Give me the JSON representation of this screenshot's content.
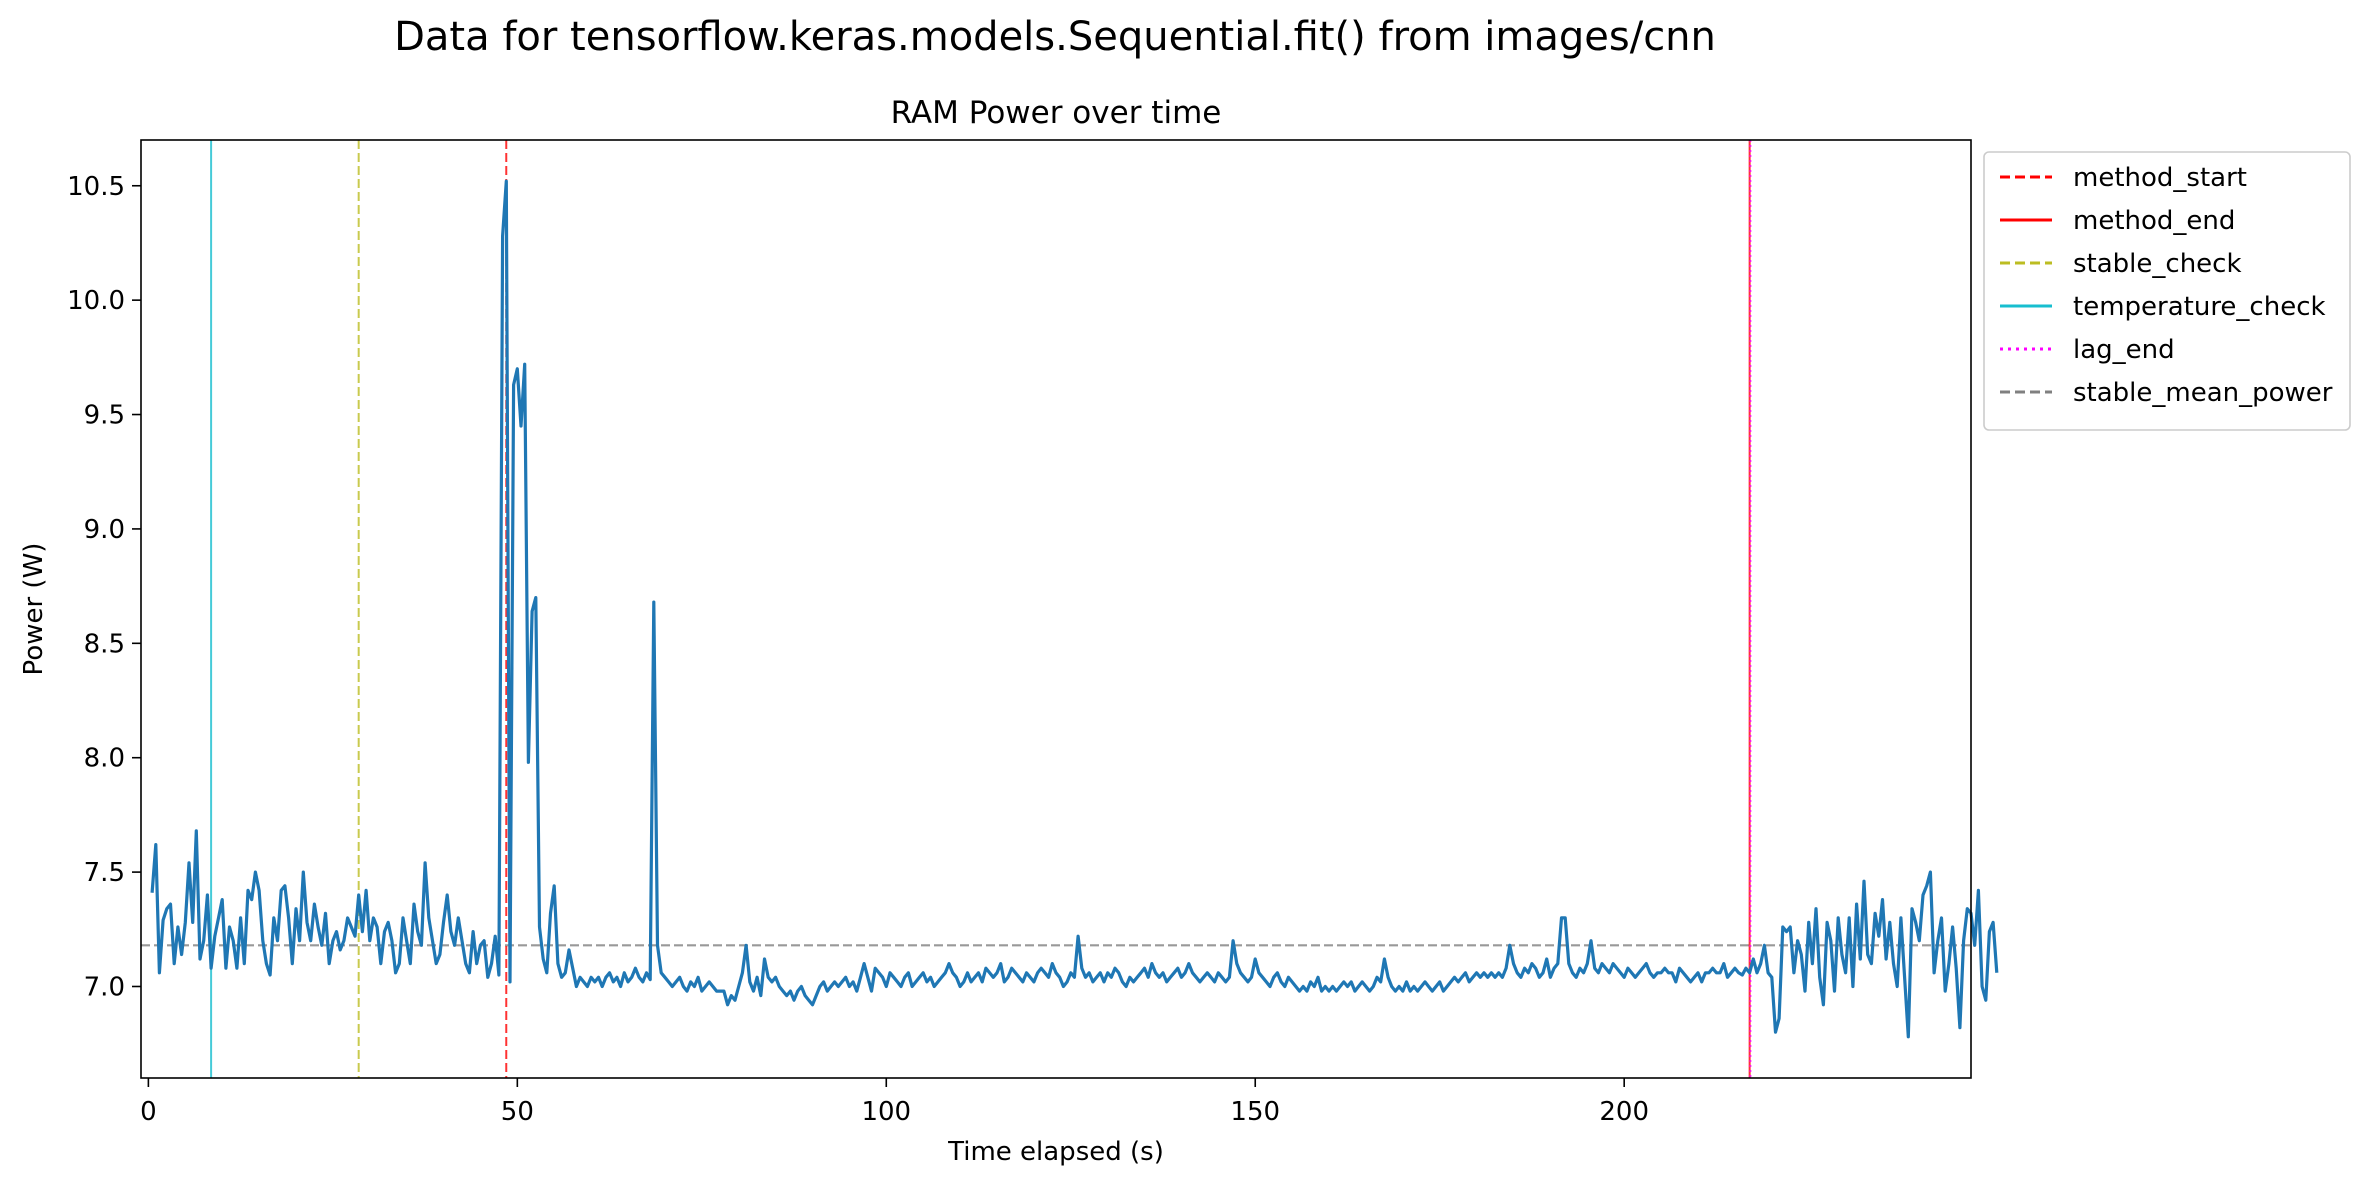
{
  "chart_data": {
    "type": "line",
    "suptitle": "Data for tensorflow.keras.models.Sequential.fit() from images/cnn",
    "title": "RAM Power over time",
    "xlabel": "Time elapsed (s)",
    "ylabel": "Power (W)",
    "xlim": [
      -1,
      247
    ],
    "ylim": [
      6.6,
      10.7
    ],
    "xticks": [
      0,
      50,
      100,
      150,
      200
    ],
    "yticks": [
      7.0,
      7.5,
      8.0,
      8.5,
      9.0,
      9.5,
      10.0,
      10.5
    ],
    "xtick_labels": [
      "0",
      "50",
      "100",
      "150",
      "200"
    ],
    "ytick_labels": [
      "7.0",
      "7.5",
      "8.0",
      "8.5",
      "9.0",
      "9.5",
      "10.0",
      "10.5"
    ],
    "grid": false,
    "legend_position": "outside-top-right",
    "series": [
      {
        "color": "#1f77b4",
        "x_start": 0.5,
        "x_step": 0.5,
        "y": [
          7.41,
          7.62,
          7.06,
          7.29,
          7.34,
          7.36,
          7.1,
          7.26,
          7.14,
          7.28,
          7.54,
          7.28,
          7.68,
          7.12,
          7.2,
          7.4,
          7.08,
          7.22,
          7.3,
          7.38,
          7.08,
          7.26,
          7.2,
          7.08,
          7.3,
          7.1,
          7.42,
          7.38,
          7.5,
          7.42,
          7.2,
          7.1,
          7.05,
          7.3,
          7.2,
          7.42,
          7.44,
          7.3,
          7.1,
          7.34,
          7.2,
          7.5,
          7.28,
          7.2,
          7.36,
          7.26,
          7.18,
          7.32,
          7.1,
          7.2,
          7.24,
          7.16,
          7.2,
          7.3,
          7.26,
          7.22,
          7.4,
          7.24,
          7.42,
          7.2,
          7.3,
          7.26,
          7.1,
          7.24,
          7.28,
          7.2,
          7.06,
          7.1,
          7.3,
          7.2,
          7.1,
          7.36,
          7.24,
          7.18,
          7.54,
          7.3,
          7.2,
          7.1,
          7.14,
          7.28,
          7.4,
          7.24,
          7.18,
          7.3,
          7.2,
          7.1,
          7.06,
          7.24,
          7.1,
          7.18,
          7.2,
          7.04,
          7.1,
          7.22,
          7.05,
          10.28,
          10.52,
          7.02,
          9.63,
          9.7,
          9.45,
          9.72,
          7.98,
          8.64,
          8.7,
          7.26,
          7.12,
          7.06,
          7.32,
          7.44,
          7.1,
          7.04,
          7.06,
          7.16,
          7.08,
          7.0,
          7.04,
          7.02,
          7.0,
          7.04,
          7.02,
          7.04,
          7.0,
          7.04,
          7.06,
          7.02,
          7.04,
          7.0,
          7.06,
          7.02,
          7.04,
          7.08,
          7.04,
          7.02,
          7.06,
          7.03,
          8.68,
          7.18,
          7.06,
          7.04,
          7.02,
          7.0,
          7.02,
          7.04,
          7.0,
          6.98,
          7.02,
          7.0,
          7.04,
          6.98,
          7.0,
          7.02,
          7.0,
          6.98,
          6.98,
          6.98,
          6.92,
          6.96,
          6.94,
          7.0,
          7.06,
          7.18,
          7.02,
          6.98,
          7.04,
          6.96,
          7.12,
          7.04,
          7.02,
          7.04,
          7.0,
          6.98,
          6.96,
          6.98,
          6.94,
          6.98,
          7.0,
          6.96,
          6.94,
          6.92,
          6.96,
          7.0,
          7.02,
          6.98,
          7.0,
          7.02,
          7.0,
          7.02,
          7.04,
          7.0,
          7.02,
          6.98,
          7.04,
          7.1,
          7.04,
          6.98,
          7.08,
          7.06,
          7.04,
          7.0,
          7.06,
          7.04,
          7.02,
          7.0,
          7.04,
          7.06,
          7.0,
          7.02,
          7.04,
          7.06,
          7.02,
          7.04,
          7.0,
          7.02,
          7.04,
          7.06,
          7.1,
          7.06,
          7.04,
          7.0,
          7.02,
          7.06,
          7.02,
          7.04,
          7.06,
          7.02,
          7.08,
          7.06,
          7.04,
          7.06,
          7.1,
          7.02,
          7.04,
          7.08,
          7.06,
          7.04,
          7.02,
          7.06,
          7.04,
          7.02,
          7.06,
          7.08,
          7.06,
          7.04,
          7.1,
          7.06,
          7.04,
          7.0,
          7.02,
          7.06,
          7.04,
          7.22,
          7.08,
          7.04,
          7.06,
          7.02,
          7.04,
          7.06,
          7.02,
          7.06,
          7.04,
          7.08,
          7.06,
          7.02,
          7.0,
          7.04,
          7.02,
          7.04,
          7.06,
          7.08,
          7.04,
          7.1,
          7.06,
          7.04,
          7.06,
          7.02,
          7.04,
          7.06,
          7.08,
          7.04,
          7.06,
          7.1,
          7.06,
          7.04,
          7.02,
          7.04,
          7.06,
          7.04,
          7.02,
          7.06,
          7.04,
          7.02,
          7.04,
          7.2,
          7.1,
          7.06,
          7.04,
          7.02,
          7.04,
          7.12,
          7.06,
          7.04,
          7.02,
          7.0,
          7.04,
          7.06,
          7.02,
          7.0,
          7.04,
          7.02,
          7.0,
          6.98,
          7.0,
          6.98,
          7.02,
          7.0,
          7.04,
          6.98,
          7.0,
          6.98,
          7.0,
          6.98,
          7.0,
          7.02,
          7.0,
          7.02,
          6.98,
          7.0,
          7.02,
          7.0,
          6.98,
          7.0,
          7.04,
          7.02,
          7.12,
          7.04,
          7.0,
          6.98,
          7.0,
          6.98,
          7.02,
          6.98,
          7.0,
          6.98,
          7.0,
          7.02,
          7.0,
          6.98,
          7.0,
          7.02,
          6.98,
          7.0,
          7.02,
          7.04,
          7.02,
          7.04,
          7.06,
          7.02,
          7.04,
          7.06,
          7.04,
          7.06,
          7.04,
          7.06,
          7.04,
          7.06,
          7.04,
          7.08,
          7.18,
          7.1,
          7.06,
          7.04,
          7.08,
          7.06,
          7.1,
          7.08,
          7.04,
          7.06,
          7.12,
          7.04,
          7.08,
          7.1,
          7.3,
          7.3,
          7.1,
          7.06,
          7.04,
          7.08,
          7.06,
          7.1,
          7.2,
          7.08,
          7.06,
          7.1,
          7.08,
          7.06,
          7.1,
          7.08,
          7.06,
          7.04,
          7.08,
          7.06,
          7.04,
          7.06,
          7.08,
          7.1,
          7.06,
          7.04,
          7.06,
          7.06,
          7.08,
          7.06,
          7.06,
          7.02,
          7.08,
          7.06,
          7.04,
          7.02,
          7.04,
          7.06,
          7.02,
          7.06,
          7.06,
          7.08,
          7.06,
          7.06,
          7.1,
          7.04,
          7.06,
          7.08,
          7.06,
          7.05,
          7.08,
          7.06,
          7.12,
          7.06,
          7.1,
          7.18,
          7.06,
          7.04,
          6.8,
          6.86,
          7.26,
          7.24,
          7.26,
          7.06,
          7.2,
          7.14,
          6.98,
          7.28,
          7.1,
          7.34,
          7.04,
          6.92,
          7.28,
          7.2,
          6.98,
          7.3,
          7.14,
          7.06,
          7.3,
          7.0,
          7.36,
          7.12,
          7.46,
          7.14,
          7.1,
          7.32,
          7.22,
          7.38,
          7.12,
          7.28,
          7.1,
          7.0,
          7.3,
          7.04,
          6.78,
          7.34,
          7.28,
          7.2,
          7.4,
          7.44,
          7.5,
          7.06,
          7.2,
          7.3,
          6.98,
          7.1,
          7.26,
          7.08,
          6.82,
          7.2,
          7.34,
          7.32,
          7.18,
          7.42,
          7.0,
          6.94,
          7.24,
          7.28,
          7.06
        ]
      }
    ],
    "vlines": [
      {
        "name": "method_start",
        "x": 48.5,
        "color": "#ff0000",
        "style": "dashed"
      },
      {
        "name": "method_end",
        "x": 217.0,
        "color": "#ff0000",
        "style": "solid"
      },
      {
        "name": "stable_check",
        "x": 28.5,
        "color": "#bcbd22",
        "style": "dashed"
      },
      {
        "name": "temperature_check",
        "x": 8.5,
        "color": "#17becf",
        "style": "solid"
      },
      {
        "name": "lag_end",
        "x": 217.1,
        "color": "#ff00ff",
        "style": "dotted"
      }
    ],
    "hlines": [
      {
        "name": "stable_mean_power",
        "y": 7.18,
        "color": "#808080",
        "style": "dashed"
      }
    ],
    "legend": [
      {
        "label": "method_start",
        "color": "#ff0000",
        "style": "dashed"
      },
      {
        "label": "method_end",
        "color": "#ff0000",
        "style": "solid"
      },
      {
        "label": "stable_check",
        "color": "#bcbd22",
        "style": "dashed"
      },
      {
        "label": "temperature_check",
        "color": "#17becf",
        "style": "solid"
      },
      {
        "label": "lag_end",
        "color": "#ff00ff",
        "style": "dotted"
      },
      {
        "label": "stable_mean_power",
        "color": "#808080",
        "style": "dashed"
      }
    ]
  }
}
